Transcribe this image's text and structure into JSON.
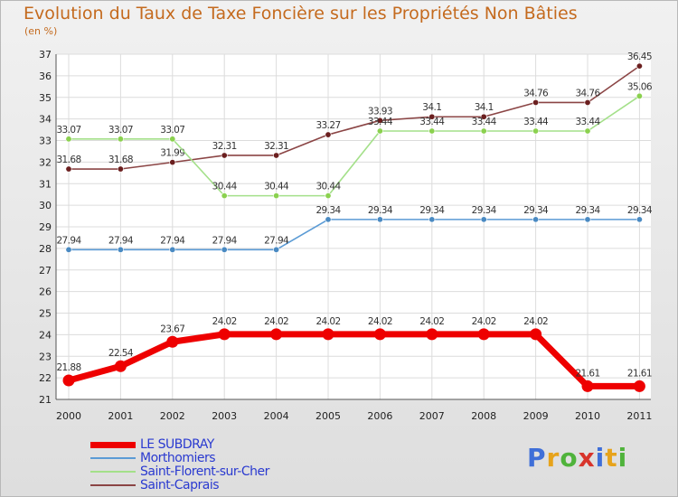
{
  "header": {
    "title": "Evolution du Taux de Taxe Foncière sur les Propriétés Non Bâties",
    "unit": "(en %)"
  },
  "logo": {
    "text": "Proxiti",
    "letters": [
      "P",
      "r",
      "o",
      "x",
      "i",
      "t",
      "i"
    ],
    "colors": [
      "#3f6fd8",
      "#e7a31b",
      "#4fb33b",
      "#d8342b",
      "#3f6fd8",
      "#e7a31b",
      "#4fb33b"
    ]
  },
  "chart_data": {
    "type": "line",
    "title": "Evolution du Taux de Taxe Foncière sur les Propriétés Non Bâties",
    "ylabel": "(en %)",
    "xlabel": "",
    "x": [
      "2000",
      "2001",
      "2002",
      "2003",
      "2004",
      "2005",
      "2006",
      "2007",
      "2008",
      "2009",
      "2010",
      "2011"
    ],
    "ylim": [
      21,
      37
    ],
    "yticks": [
      "21",
      "22",
      "23",
      "24",
      "25",
      "26",
      "27",
      "28",
      "29",
      "30",
      "31",
      "32",
      "33",
      "34",
      "35",
      "36",
      "37"
    ],
    "grid": true,
    "series": [
      {
        "name": "LE SUBDRAY",
        "color": "#ee0000",
        "values": [
          21.88,
          22.54,
          23.67,
          24.02,
          24.02,
          24.02,
          24.02,
          24.02,
          24.02,
          24.02,
          21.61,
          21.61
        ],
        "labels": [
          "21.88",
          "22.54",
          "23.67",
          "24.02",
          "24.02",
          "24.02",
          "24.02",
          "24.02",
          "24.02",
          "24.02",
          "21.61",
          "21.61"
        ]
      },
      {
        "name": "Morthomiers",
        "color": "#5b9bd5",
        "dot": "#4a8ac2",
        "values": [
          27.94,
          27.94,
          27.94,
          27.94,
          27.94,
          29.34,
          29.34,
          29.34,
          29.34,
          29.34,
          29.34,
          29.34
        ],
        "labels": [
          "27.94",
          "27.94",
          "27.94",
          "27.94",
          "27.94",
          "29.34",
          "29.34",
          "29.34",
          "29.34",
          "29.34",
          "29.34",
          "29.34"
        ]
      },
      {
        "name": "Saint-Florent-sur-Cher",
        "color": "#a4e08a",
        "dot": "#8bd14f",
        "values": [
          33.07,
          33.07,
          33.07,
          30.44,
          30.44,
          30.44,
          33.44,
          33.44,
          33.44,
          33.44,
          33.44,
          35.06
        ],
        "labels": [
          "33.07",
          "33.07",
          "33.07",
          "30.44",
          "30.44",
          "30.44",
          "33.44",
          "33.44",
          "33.44",
          "33.44",
          "33.44",
          "35.06"
        ]
      },
      {
        "name": "Saint-Caprais",
        "color": "#8b4545",
        "dot": "#6b1f1f",
        "values": [
          31.68,
          31.68,
          31.99,
          32.31,
          32.31,
          33.27,
          33.93,
          34.1,
          34.1,
          34.76,
          34.76,
          36.45
        ],
        "labels": [
          "31.68",
          "31.68",
          "31.99",
          "32.31",
          "32.31",
          "33.27",
          "33.93",
          "34.1",
          "34.1",
          "34.76",
          "34.76",
          "36.45"
        ]
      }
    ],
    "legend": "bottom-left"
  }
}
